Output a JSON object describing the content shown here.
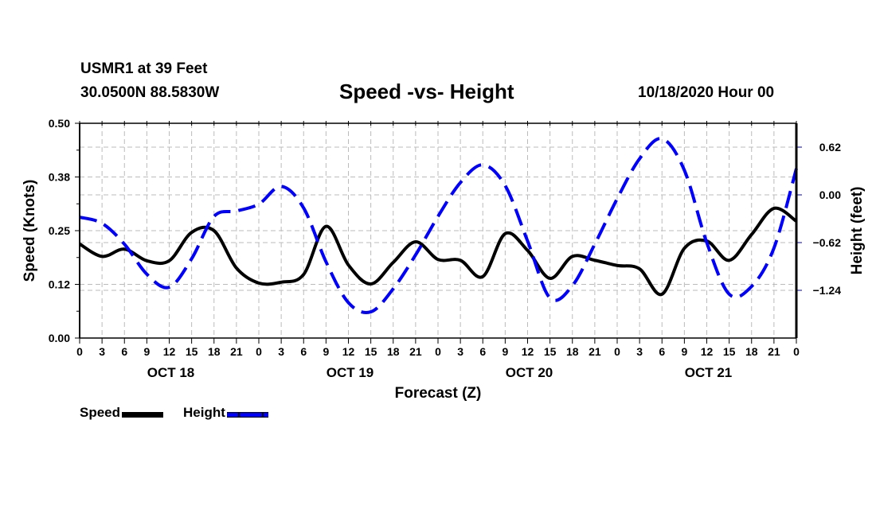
{
  "header": {
    "station": "USMR1 at 39 Feet",
    "coords": "30.0500N 88.5830W",
    "title": "Speed -vs- Height",
    "datetime": "10/18/2020 Hour 00"
  },
  "legend": {
    "speed_label": "Speed",
    "height_label": "Height"
  },
  "chart_data": {
    "type": "line",
    "title": "Speed -vs- Height",
    "xlabel": "Forecast (Z)",
    "ylabel": "Speed (Knots)",
    "y2label": "Height (feet)",
    "xlim": [
      0,
      96
    ],
    "ylim": [
      0,
      0.5
    ],
    "y2lim": [
      -1.86,
      0.93
    ],
    "grid": true,
    "legend_position": "bottom-left",
    "x_tick_labels": [
      "0",
      "3",
      "6",
      "9",
      "12",
      "15",
      "18",
      "21",
      "0",
      "3",
      "6",
      "9",
      "12",
      "15",
      "18",
      "21",
      "0",
      "3",
      "6",
      "9",
      "12",
      "15",
      "18",
      "21",
      "0",
      "3",
      "6",
      "9",
      "12",
      "15",
      "18",
      "21",
      "0"
    ],
    "date_labels": [
      {
        "label": "OCT 18",
        "hour": 12
      },
      {
        "label": "OCT 19",
        "hour": 36
      },
      {
        "label": "OCT 20",
        "hour": 60
      },
      {
        "label": "OCT 21",
        "hour": 84
      }
    ],
    "y_ticks": [
      {
        "value": 0.5,
        "label": "0.50"
      },
      {
        "value": 0.375,
        "label": "0.38"
      },
      {
        "value": 0.25,
        "label": "0.25"
      },
      {
        "value": 0.125,
        "label": "0.12"
      },
      {
        "value": 0.0,
        "label": "0.00"
      }
    ],
    "y2_ticks": [
      {
        "value": 0.62,
        "label": "0.62"
      },
      {
        "value": 0.0,
        "label": "0.00"
      },
      {
        "value": -0.62,
        "label": "-0.62"
      },
      {
        "value": -1.24,
        "label": "-1.24"
      }
    ],
    "x": [
      0,
      3,
      6,
      9,
      12,
      15,
      18,
      21,
      24,
      27,
      30,
      33,
      36,
      39,
      42,
      45,
      48,
      51,
      54,
      57,
      60,
      63,
      66,
      69,
      72,
      75,
      78,
      81,
      84,
      87,
      90,
      93,
      96
    ],
    "series": [
      {
        "name": "Speed",
        "axis": "left",
        "color": "#000000",
        "style": "solid",
        "values": [
          0.219,
          0.19,
          0.207,
          0.18,
          0.18,
          0.246,
          0.25,
          0.163,
          0.128,
          0.13,
          0.148,
          0.26,
          0.17,
          0.126,
          0.176,
          0.224,
          0.183,
          0.181,
          0.143,
          0.243,
          0.204,
          0.139,
          0.19,
          0.181,
          0.169,
          0.161,
          0.102,
          0.209,
          0.226,
          0.181,
          0.241,
          0.302,
          0.272
        ]
      },
      {
        "name": "Height",
        "axis": "right",
        "color": "#0000ff",
        "style": "dashed",
        "values": [
          -0.29,
          -0.37,
          -0.64,
          -1.03,
          -1.2,
          -0.83,
          -0.28,
          -0.21,
          -0.12,
          0.11,
          -0.17,
          -0.87,
          -1.4,
          -1.52,
          -1.22,
          -0.78,
          -0.28,
          0.16,
          0.39,
          0.12,
          -0.6,
          -1.34,
          -1.18,
          -0.64,
          -0.05,
          0.47,
          0.73,
          0.32,
          -0.62,
          -1.29,
          -1.19,
          -0.69,
          0.34
        ]
      }
    ]
  }
}
